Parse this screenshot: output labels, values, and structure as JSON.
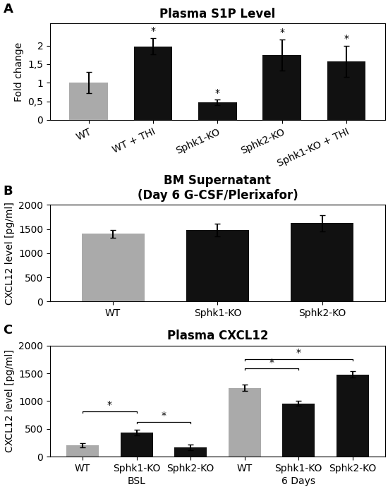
{
  "chart_data": [
    {
      "type": "bar",
      "panel_label": "A",
      "title": "Plasma S1P Level",
      "y_label": "Fold change",
      "categories": [
        "WT",
        "WT + THI",
        "Sphk1-KO",
        "Sphk2-KO",
        "Sphk1-KO + THI"
      ],
      "values": [
        1.0,
        1.98,
        0.47,
        1.75,
        1.58
      ],
      "errors": [
        0.28,
        0.22,
        0.07,
        0.42,
        0.42
      ],
      "colors": [
        "#aaaaaa",
        "#111111",
        "#111111",
        "#111111",
        "#111111"
      ],
      "annotations": [
        null,
        "*",
        "*",
        "*",
        "*"
      ],
      "ylim": [
        0,
        2.6
      ],
      "yticks": [
        0,
        {
          "value": 0.5,
          "label": "0,5"
        },
        1,
        {
          "value": 1.5,
          "label": "1,5"
        },
        2
      ]
    },
    {
      "type": "bar",
      "panel_label": "B",
      "title": "BM Supernatant\n(Day 6 G-CSF/Plerixafor)",
      "y_label": "CXCL12 level [pg/ml]",
      "categories": [
        "WT",
        "Sphk1-KO",
        "Sphk2-KO"
      ],
      "values": [
        1400,
        1480,
        1620
      ],
      "errors": [
        80,
        130,
        170
      ],
      "colors": [
        "#aaaaaa",
        "#111111",
        "#111111"
      ],
      "ylim": [
        0,
        2000
      ],
      "yticks": [
        0,
        500,
        1000,
        1500,
        2000
      ]
    },
    {
      "type": "bar",
      "panel_label": "C",
      "title": "Plasma CXCL12",
      "y_label": "CXCL12 level [pg/ml]",
      "categories": [
        "WT",
        "Sphk1-KO",
        "Sphk2-KO",
        "WT",
        "Sphk1-KO",
        "Sphk2-KO"
      ],
      "values": [
        200,
        430,
        170,
        1240,
        960,
        1480
      ],
      "errors": [
        40,
        50,
        50,
        60,
        40,
        60
      ],
      "colors": [
        "#aaaaaa",
        "#111111",
        "#111111",
        "#aaaaaa",
        "#111111",
        "#111111"
      ],
      "groups": [
        {
          "label": "BSL",
          "count": 3
        },
        {
          "label": "6 Days",
          "count": 3
        }
      ],
      "brackets": [
        {
          "from": 0,
          "to": 1,
          "y": 820,
          "text": "*"
        },
        {
          "from": 1,
          "to": 2,
          "y": 630,
          "text": "*"
        },
        {
          "from": 3,
          "to": 4,
          "y": 1590,
          "text": "*"
        },
        {
          "from": 3,
          "to": 5,
          "y": 1760,
          "text": "*"
        }
      ],
      "ylim": [
        0,
        2000
      ],
      "yticks": [
        0,
        500,
        1000,
        1500,
        2000
      ]
    }
  ]
}
